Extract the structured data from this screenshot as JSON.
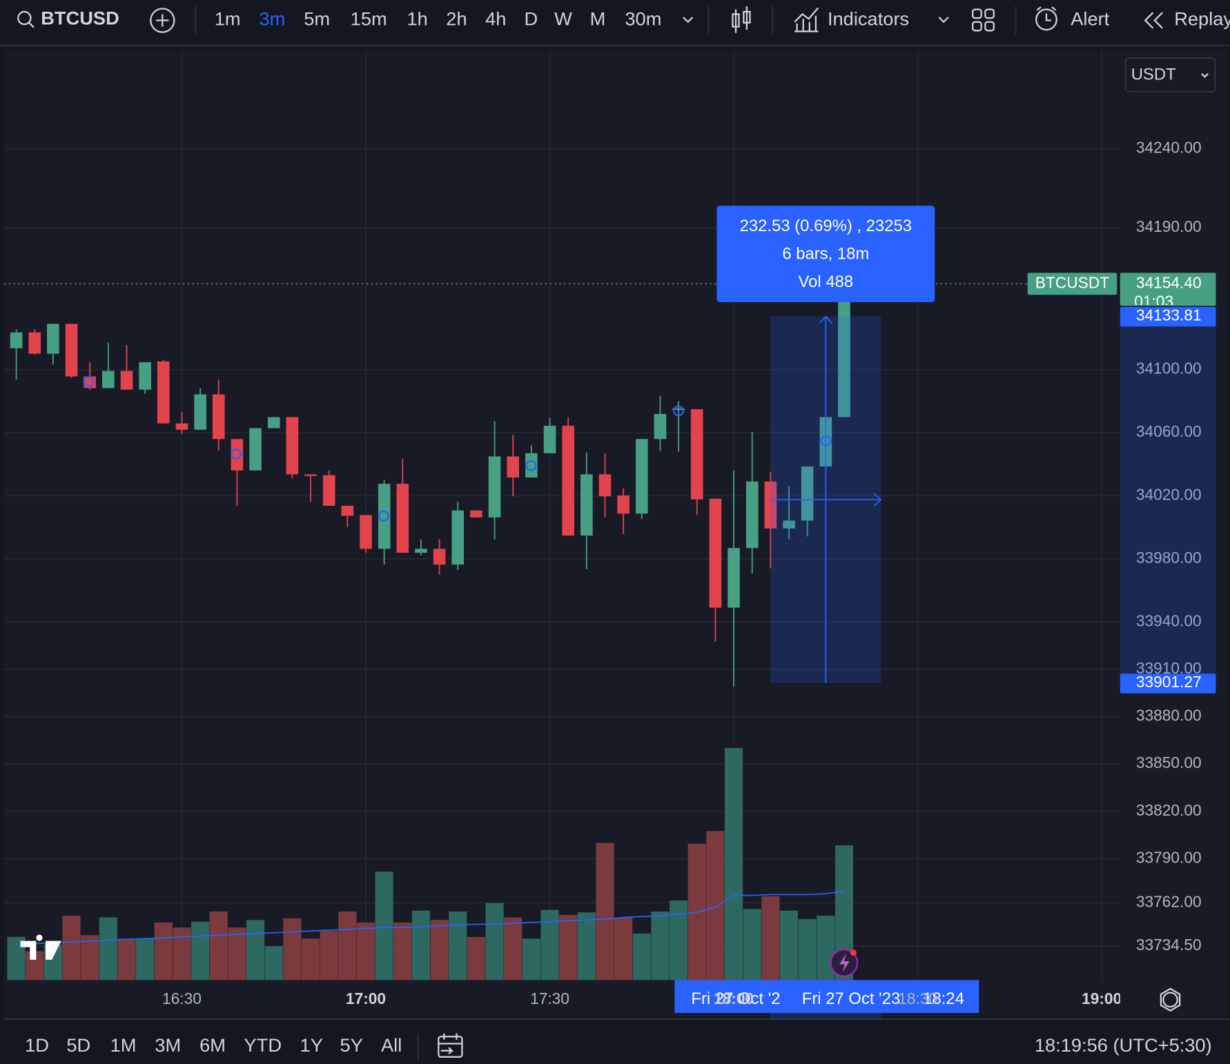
{
  "toolbar": {
    "symbol": "BTCUSD",
    "intervals": [
      "1m",
      "3m",
      "5m",
      "15m",
      "1h",
      "2h",
      "4h",
      "D",
      "W",
      "M",
      "30m"
    ],
    "indicators": "Indicators",
    "alert": "Alert",
    "replay": "Replay"
  },
  "currency": "USDT",
  "chart_data": {
    "type": "candlestick",
    "x": [
      963,
      966,
      969,
      972,
      975,
      978,
      981,
      984,
      987,
      990,
      993,
      996,
      999,
      1002,
      1005,
      1008,
      1011,
      1014,
      1017,
      1020,
      1023,
      1026,
      1029,
      1032,
      1035,
      1038,
      1041,
      1044,
      1047,
      1050,
      1053,
      1056,
      1059,
      1062,
      1065,
      1068,
      1071,
      1074,
      1077,
      1080,
      1083,
      1086,
      1089,
      1092,
      1095,
      1098
    ],
    "open": [
      34113.6,
      34123.6,
      34110.1,
      34129,
      34095.7,
      34088.3,
      34099.2,
      34087.3,
      34105.2,
      34065.9,
      34061.9,
      34084.3,
      34056,
      34036.1,
      34062.9,
      34069.9,
      34033.6,
      34033.1,
      34013.7,
      34007.8,
      33986.4,
      34027.6,
      33983.9,
      33986.4,
      33976.4,
      34010.7,
      34006.3,
      34045,
      34031.6,
      34047,
      34064.4,
      33994.8,
      34033.6,
      34020.2,
      34008.7,
      34056,
      34074.4,
      34074.9,
      34018.2,
      33949.1,
      33986.9,
      34029.1,
      33999.3,
      34004.3,
      34038.6,
      34069.9
    ],
    "high": [
      34125.6,
      34125.6,
      34129,
      34129,
      34104.7,
      34117.1,
      34115.6,
      34104.7,
      34106.2,
      34073.4,
      34088.3,
      34093.7,
      34056,
      34062.9,
      34069.9,
      34069.9,
      34033.6,
      34036.1,
      34013.7,
      34007.8,
      34030.1,
      34043.5,
      33992.4,
      33992.4,
      34016.2,
      34010.7,
      34067.4,
      34058.5,
      34052,
      34069.4,
      34069.9,
      34047.5,
      34047,
      34024.7,
      34056,
      34083.3,
      34079.8,
      34074.9,
      34018.2,
      34036.1,
      34060.4,
      34035.1,
      34026.1,
      34038.6,
      34069.9,
      34154.4
    ],
    "low": [
      34093.7,
      34109.6,
      34103.2,
      34094.7,
      34087.3,
      34088.3,
      34087.3,
      34084.8,
      34065.9,
      34059.4,
      34061.9,
      34048.5,
      34013.7,
      34036.1,
      34062.9,
      34031.1,
      34016.2,
      34013.7,
      34000.3,
      33983.9,
      33976.4,
      33983.9,
      33982.4,
      33970,
      33973,
      34006.3,
      33992.4,
      34019.7,
      34031.6,
      34047,
      33994.8,
      33973.5,
      34006.3,
      33995.8,
      34005.3,
      34048.5,
      34048,
      34007.8,
      33927.7,
      33898.9,
      33970.5,
      33974,
      33992.4,
      33994.3,
      34036.1,
      34069.9
    ],
    "close": [
      34123.6,
      34110.1,
      34129,
      34095.7,
      34088.3,
      34099.2,
      34087.3,
      34104.7,
      34065.9,
      34061.9,
      34084.3,
      34056,
      34036.1,
      34062.9,
      34069.9,
      34033.6,
      34032.6,
      34013.7,
      34007.3,
      33986.4,
      34027.6,
      33983.9,
      33986.4,
      33976.4,
      34010.7,
      34006.3,
      34045,
      34031.6,
      34047,
      34064.4,
      33994.8,
      34033.6,
      34019.7,
      34008.7,
      34056,
      34071.9,
      34075.4,
      34017.7,
      33949.1,
      33986.9,
      34029.1,
      33999.3,
      34004.3,
      34038.6,
      34069.9,
      34154.4
    ],
    "volume": [
      51,
      34,
      42,
      76,
      53,
      74,
      49,
      49,
      68,
      62,
      69,
      81,
      62,
      71,
      40,
      73,
      49,
      58,
      81,
      68,
      128,
      68,
      82,
      71,
      81,
      51,
      91,
      74,
      49,
      83,
      77,
      80,
      162,
      74,
      55,
      81,
      94,
      161,
      176,
      274,
      84,
      99,
      82,
      72,
      76,
      159
    ],
    "volume_ma": [
      42,
      43,
      44,
      45,
      46,
      47,
      48,
      49,
      50,
      51,
      52,
      53,
      54,
      55,
      56,
      57,
      58,
      59,
      60,
      61,
      62,
      62,
      63,
      64,
      65,
      66,
      66,
      67,
      68,
      69,
      70,
      71,
      72,
      74,
      75,
      76,
      78,
      80,
      86,
      100,
      100,
      101,
      101,
      101,
      102,
      105
    ],
    "up_color": "#47a084",
    "down_color": "#e2434d",
    "volume_up_color": "#2d6861",
    "volume_down_color": "#7b3b3e",
    "volume_ma_color": "#2962ff",
    "xlim": [
      961,
      1143
    ],
    "ylim": [
      33713,
      34302
    ],
    "volume_lim": [
      0,
      1097
    ],
    "grid": true,
    "xticks": [
      {
        "value": 990,
        "label": "16:30"
      },
      {
        "value": 1020,
        "label": "17:00"
      },
      {
        "value": 1050,
        "label": "17:30"
      },
      {
        "value": 1080,
        "label": "18:00"
      },
      {
        "value": 1110,
        "label": "18:30"
      },
      {
        "value": 1140,
        "label": "19:00"
      }
    ],
    "yticks": [
      {
        "value": 34240,
        "label": "34240.00"
      },
      {
        "value": 34190,
        "label": "34190.00"
      },
      {
        "value": 34100,
        "label": "34100.00"
      },
      {
        "value": 34060,
        "label": "34060.00"
      },
      {
        "value": 34020,
        "label": "34020.00"
      },
      {
        "value": 33980,
        "label": "33980.00"
      },
      {
        "value": 33940,
        "label": "33940.00"
      },
      {
        "value": 33910,
        "label": "33910.00"
      },
      {
        "value": 33880,
        "label": "33880.00"
      },
      {
        "value": 33850,
        "label": "33850.00"
      },
      {
        "value": 33820,
        "label": "33820.00"
      },
      {
        "value": 33790,
        "label": "33790.00"
      },
      {
        "value": 33762,
        "label": "33762.00"
      },
      {
        "value": 33734.5,
        "label": "33734.50"
      }
    ],
    "last_price": {
      "value": 34154.4,
      "label": "34154.40"
    },
    "symbol_label": "BTCUSDT",
    "countdown": "01:03",
    "measure": {
      "high": 34133.81,
      "low": 33901.27,
      "x": [
        1086,
        1104
      ],
      "lines": [
        "232.53 (0.69%) , 23253",
        "6 bars, 18m",
        "Vol 488"
      ]
    },
    "crosshair_labels": [
      "Fri 27 Oct '2",
      "Fri 27 Oct '23",
      "18:24"
    ]
  },
  "bottom_bar": {
    "ranges": [
      "1D",
      "5D",
      "1M",
      "3M",
      "6M",
      "YTD",
      "1Y",
      "5Y",
      "All"
    ],
    "clock": "18:19:56 (UTC+5:30)"
  }
}
